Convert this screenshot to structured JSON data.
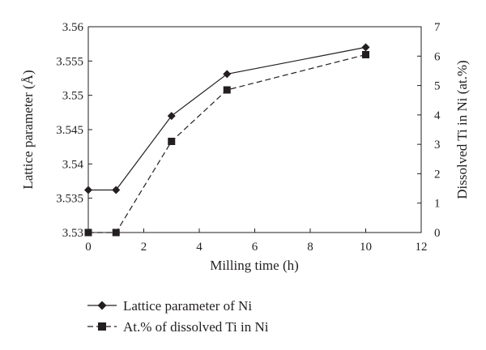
{
  "chart_data": {
    "type": "line",
    "xlabel": "Milling time (h)",
    "ylabel": "Lattice parameter (Å)",
    "y2label": "Dissolved Ti in Ni (at.%)",
    "xlim": [
      0,
      12
    ],
    "ylim": [
      3.53,
      3.56
    ],
    "y2lim": [
      0,
      7
    ],
    "xticks": [
      "0",
      "2",
      "4",
      "6",
      "8",
      "10",
      "12"
    ],
    "yticks": [
      "3.53",
      "3.535",
      "3.54",
      "3.545",
      "3.55",
      "3.555",
      "3.56"
    ],
    "y2ticks": [
      "0",
      "1",
      "2",
      "3",
      "4",
      "5",
      "6",
      "7"
    ],
    "grid": false,
    "legend_position": "bottom",
    "series": [
      {
        "name": "Lattice parameter of Ni",
        "axis": "left",
        "style": "solid",
        "marker": "diamond",
        "x": [
          0,
          1,
          3,
          5,
          10
        ],
        "y": [
          3.5362,
          3.5362,
          3.547,
          3.5531,
          3.557
        ]
      },
      {
        "name": "At.% of dissolved Ti in Ni",
        "axis": "right",
        "style": "dashed",
        "marker": "square",
        "x": [
          0,
          1,
          3,
          5,
          10
        ],
        "y": [
          0,
          0,
          3.1,
          4.85,
          6.05
        ]
      }
    ]
  }
}
